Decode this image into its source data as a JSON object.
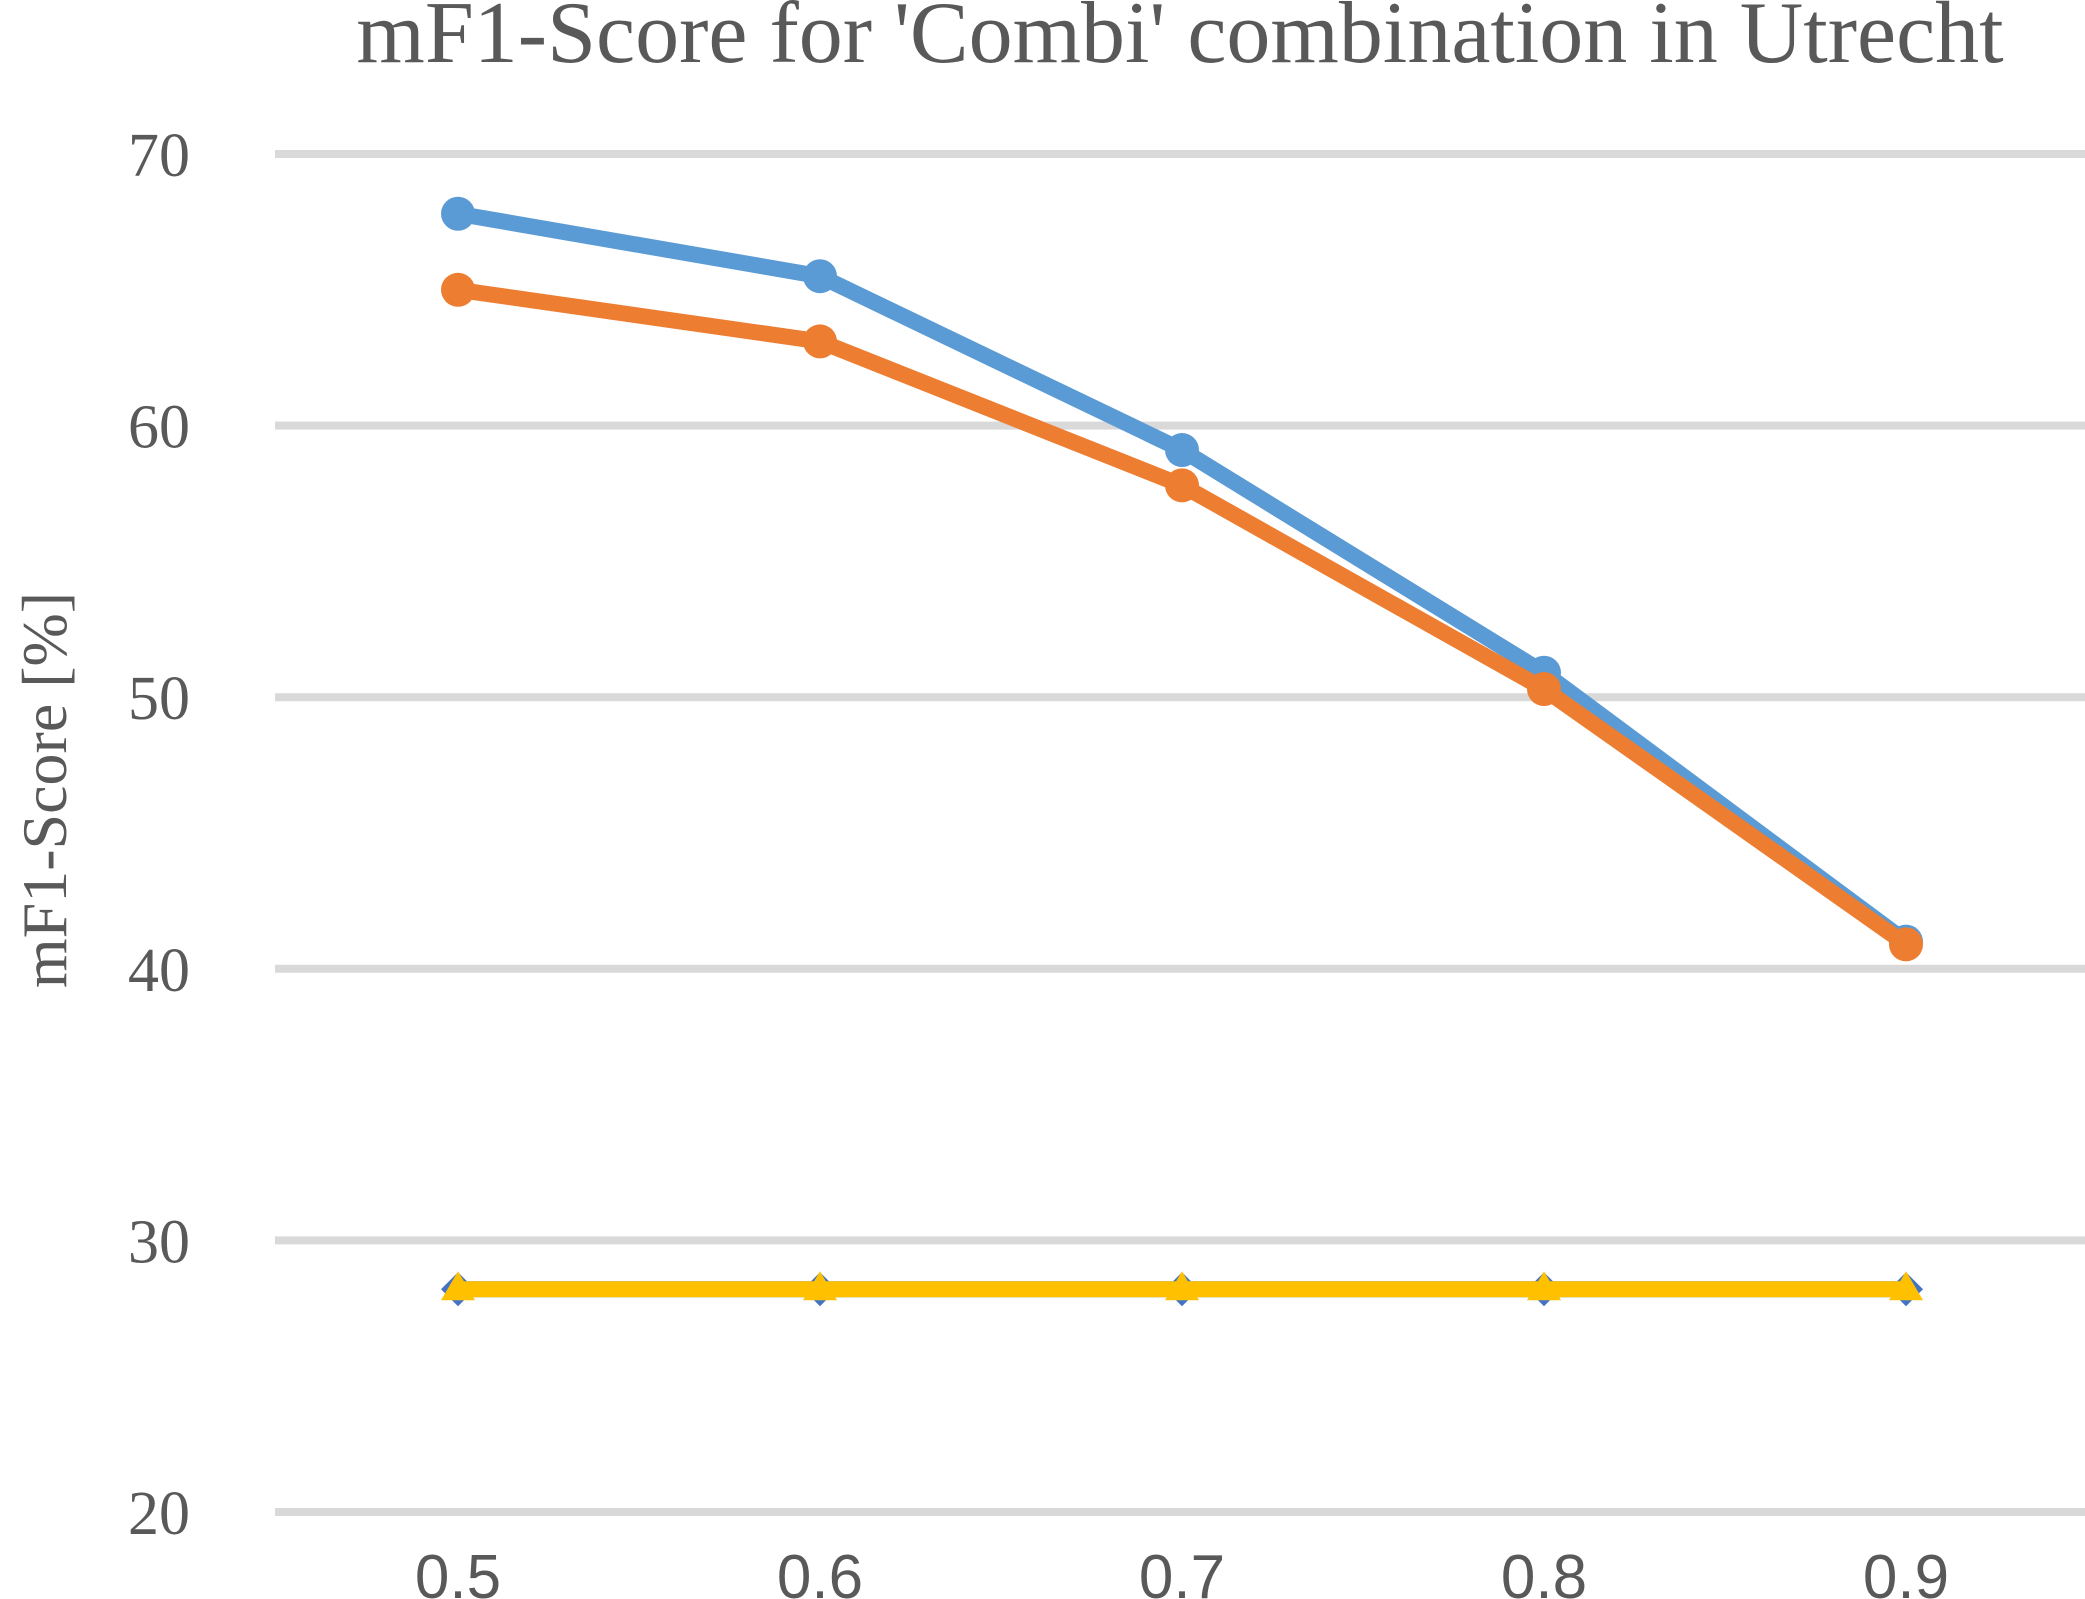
{
  "chart_data": {
    "type": "line",
    "title": "mF1-Score for 'Combi' combination in Utrecht",
    "xlabel": "",
    "ylabel": "mF1-Score [%]",
    "x": [
      0.5,
      0.6,
      0.7,
      0.8,
      0.9
    ],
    "x_tick_labels": [
      "0.5",
      "0.6",
      "0.7",
      "0.8",
      "0.9"
    ],
    "ylim": [
      20,
      70
    ],
    "y_ticks": [
      20,
      30,
      40,
      50,
      60,
      70
    ],
    "grid": true,
    "series": [
      {
        "color": "#5b9bd5",
        "marker": "circle",
        "values": [
          67.8,
          65.5,
          59.1,
          50.9,
          41.0
        ]
      },
      {
        "color": "#ed7d31",
        "marker": "circle",
        "values": [
          65.0,
          63.1,
          57.8,
          50.3,
          40.9
        ]
      },
      {
        "color": "#4472c4",
        "marker": "diamond",
        "values": [
          28.2,
          28.2,
          28.2,
          28.2,
          28.2
        ]
      },
      {
        "color": "#ffc000",
        "marker": "triangle",
        "values": [
          28.2,
          28.2,
          28.2,
          28.2,
          28.2
        ]
      }
    ]
  }
}
